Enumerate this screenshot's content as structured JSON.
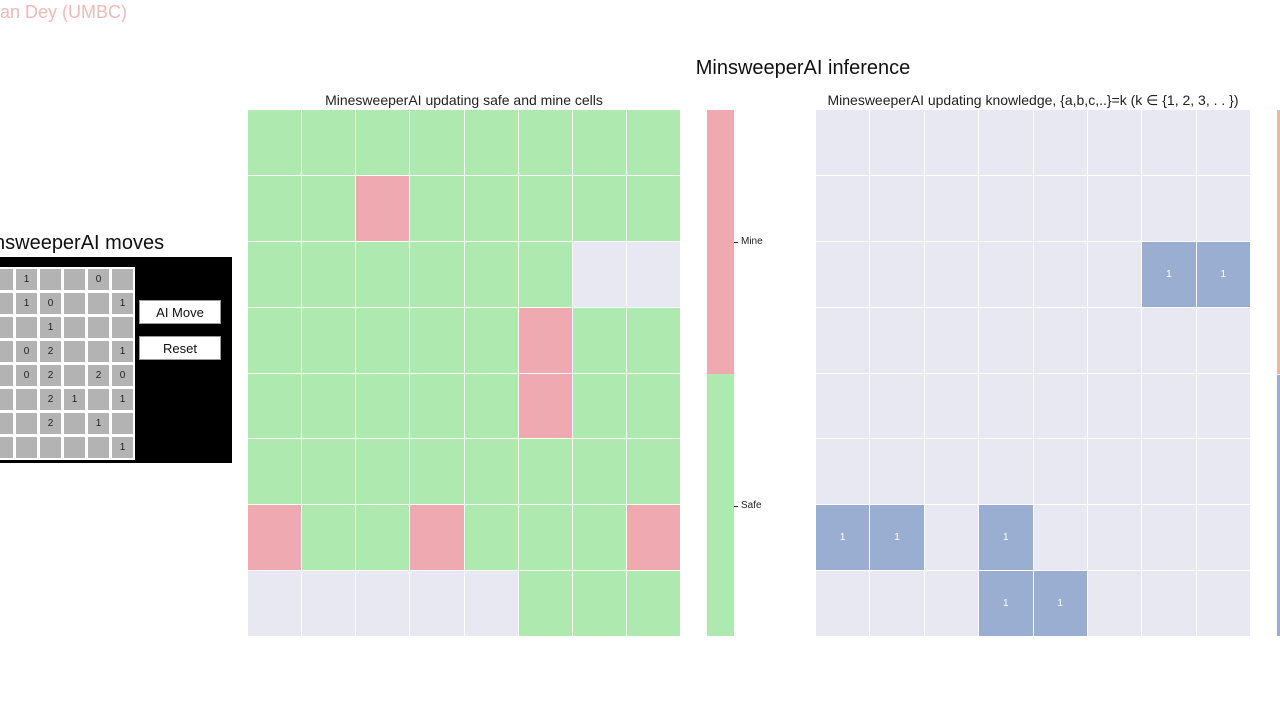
{
  "watermark": "an Dey (UMBC)",
  "main_title": "MinsweeperAI inference",
  "moves_panel": {
    "title": "nsweeperAI moves",
    "board": [
      [
        "",
        "1",
        "",
        "",
        "0",
        ""
      ],
      [
        "",
        "1",
        "0",
        "",
        "",
        "1"
      ],
      [
        "",
        "",
        "1",
        "",
        "",
        ""
      ],
      [
        "",
        "0",
        "2",
        "",
        "",
        "1"
      ],
      [
        "",
        "0",
        "2",
        "",
        "2",
        "0"
      ],
      [
        "",
        "",
        "2",
        "1",
        "",
        "1"
      ],
      [
        "",
        "",
        "2",
        "",
        "1",
        ""
      ],
      [
        "",
        "",
        "",
        "",
        "",
        "1"
      ]
    ],
    "ai_move_label": "AI Move",
    "reset_label": "Reset"
  },
  "safety_map": {
    "title": "MinesweeperAI updating safe and mine cells",
    "legend": {
      "mine_label": "Mine",
      "safe_label": "Safe"
    },
    "colors": {
      "safe": "#aeeab0",
      "mine": "#eeaab0",
      "unknown": "#e8e8f2"
    },
    "grid": [
      [
        "S",
        "S",
        "S",
        "S",
        "S",
        "S",
        "S",
        "S"
      ],
      [
        "S",
        "S",
        "M",
        "S",
        "S",
        "S",
        "S",
        "S"
      ],
      [
        "S",
        "S",
        "S",
        "S",
        "S",
        "S",
        "U",
        "U"
      ],
      [
        "S",
        "S",
        "S",
        "S",
        "S",
        "M",
        "S",
        "S"
      ],
      [
        "S",
        "S",
        "S",
        "S",
        "S",
        "M",
        "S",
        "S"
      ],
      [
        "S",
        "S",
        "S",
        "S",
        "S",
        "S",
        "S",
        "S"
      ],
      [
        "M",
        "S",
        "S",
        "M",
        "S",
        "S",
        "S",
        "M"
      ],
      [
        "U",
        "U",
        "U",
        "U",
        "U",
        "S",
        "S",
        "S"
      ]
    ]
  },
  "knowledge_map": {
    "title": "MinesweeperAI updating knowledge, {a,b,c,..}=k (k ∈ {1, 2, 3, . . })",
    "colors": {
      "empty": "#e8e8f2",
      "known": "#9aaed2",
      "colorbar_top": "#e8b8a4",
      "colorbar_bottom": "#9aaed2"
    },
    "grid": [
      [
        "",
        "",
        "",
        "",
        "",
        "",
        "",
        ""
      ],
      [
        "",
        "",
        "",
        "",
        "",
        "",
        "",
        ""
      ],
      [
        "",
        "",
        "",
        "",
        "",
        "",
        "1",
        "1"
      ],
      [
        "",
        "",
        "",
        "",
        "",
        "",
        "",
        ""
      ],
      [
        "",
        "",
        "",
        "",
        "",
        "",
        "",
        ""
      ],
      [
        "",
        "",
        "",
        "",
        "",
        "",
        "",
        ""
      ],
      [
        "1",
        "1",
        "",
        "1",
        "",
        "",
        "",
        ""
      ],
      [
        "",
        "",
        "",
        "1",
        "1",
        "",
        "",
        ""
      ]
    ]
  }
}
